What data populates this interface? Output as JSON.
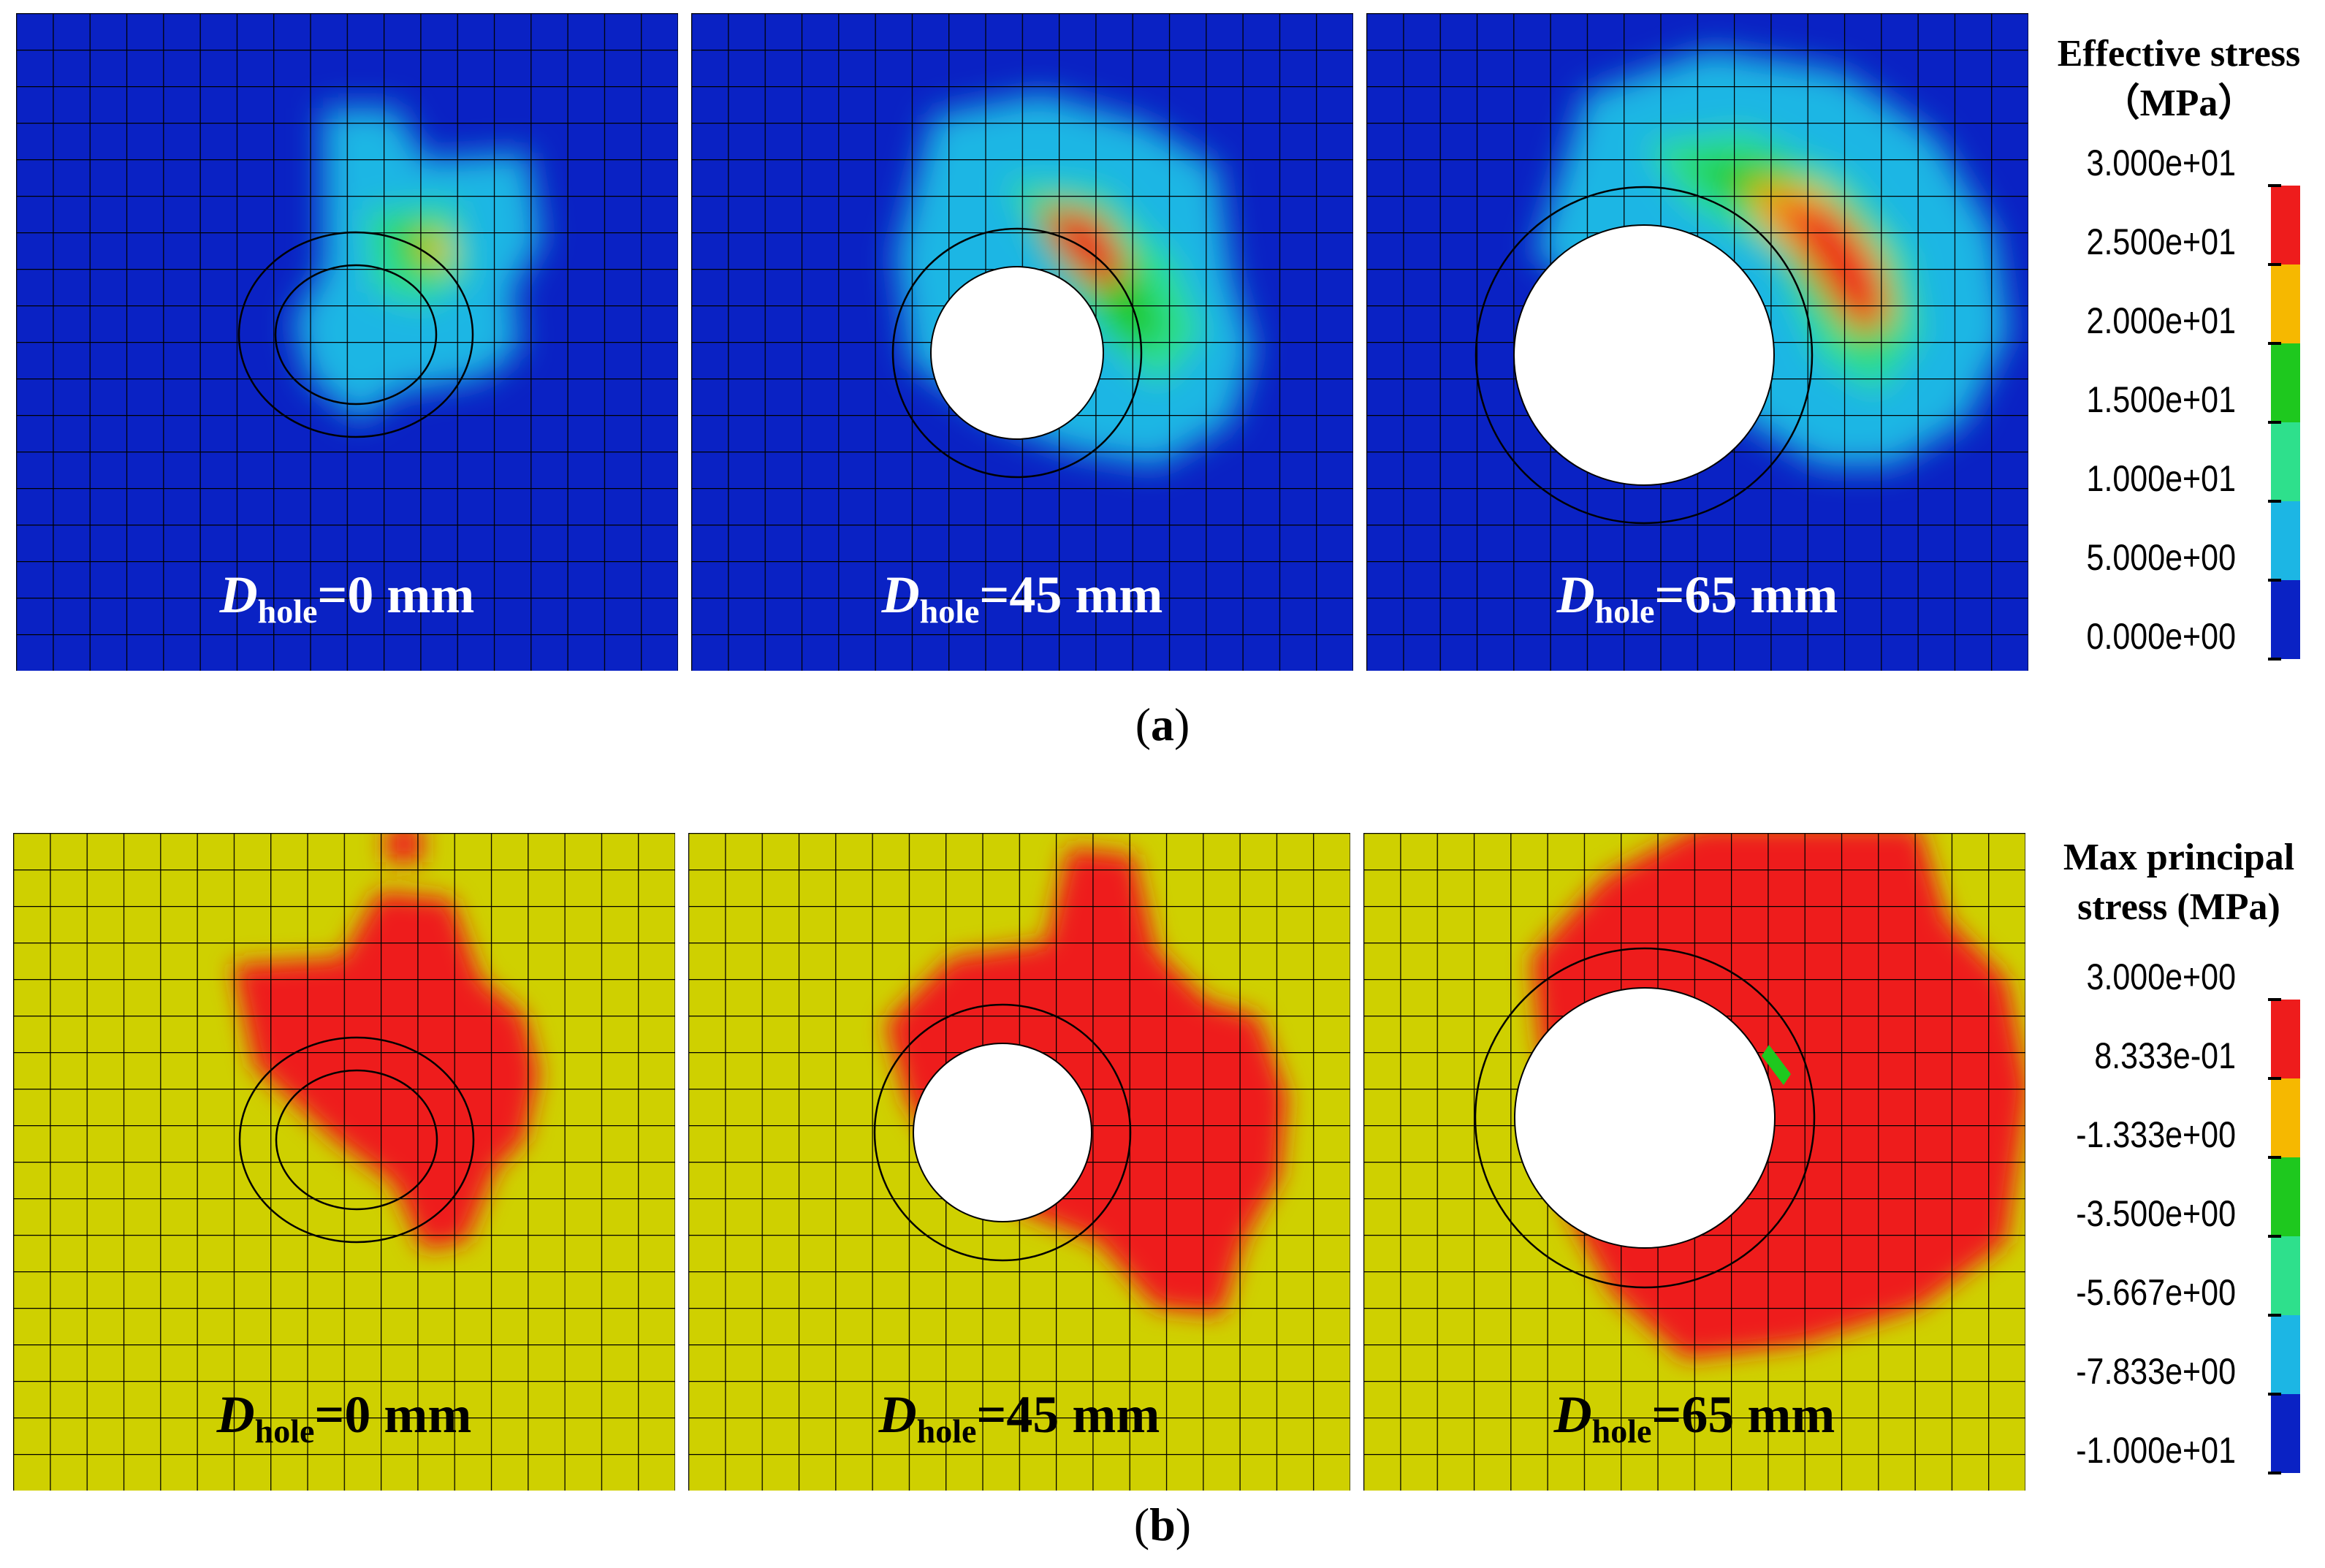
{
  "colors": {
    "background_a": "#0a22c4",
    "background_b": "#cfd000",
    "hole": "#ffffff"
  },
  "row_a": {
    "caption": "a",
    "legend": {
      "title_line1": "Effective stress",
      "title_line2": "（MPa）",
      "ticks": [
        "3.000e+01",
        "2.500e+01",
        "2.000e+01",
        "1.500e+01",
        "1.000e+01",
        "5.000e+00",
        "0.000e+00"
      ],
      "colors": [
        "#ee1c1c",
        "#f6b800",
        "#1ec81e",
        "#2ee08c",
        "#1cb6e4",
        "#0a22c4"
      ]
    },
    "panels": [
      {
        "label_d": "D",
        "label_sub": "hole",
        "label_value": "=0 mm",
        "hole_diameter_mm": 0
      },
      {
        "label_d": "D",
        "label_sub": "hole",
        "label_value": "=45 mm",
        "hole_diameter_mm": 45
      },
      {
        "label_d": "D",
        "label_sub": "hole",
        "label_value": "=65 mm",
        "hole_diameter_mm": 65
      }
    ]
  },
  "row_b": {
    "caption": "b",
    "legend": {
      "title_line1": "Max principal",
      "title_line2": "stress (MPa)",
      "ticks": [
        "3.000e+00",
        "8.333e-01",
        "-1.333e+00",
        "-3.500e+00",
        "-5.667e+00",
        "-7.833e+00",
        "-1.000e+01"
      ],
      "colors": [
        "#ee1c1c",
        "#f6b800",
        "#1ec81e",
        "#2ee08c",
        "#1cb6e4",
        "#0a22c4"
      ]
    },
    "panels": [
      {
        "label_d": "D",
        "label_sub": "hole",
        "label_value": "=0 mm",
        "hole_diameter_mm": 0
      },
      {
        "label_d": "D",
        "label_sub": "hole",
        "label_value": "=45 mm",
        "hole_diameter_mm": 45
      },
      {
        "label_d": "D",
        "label_sub": "hole",
        "label_value": "=65 mm",
        "hole_diameter_mm": 65
      }
    ]
  }
}
